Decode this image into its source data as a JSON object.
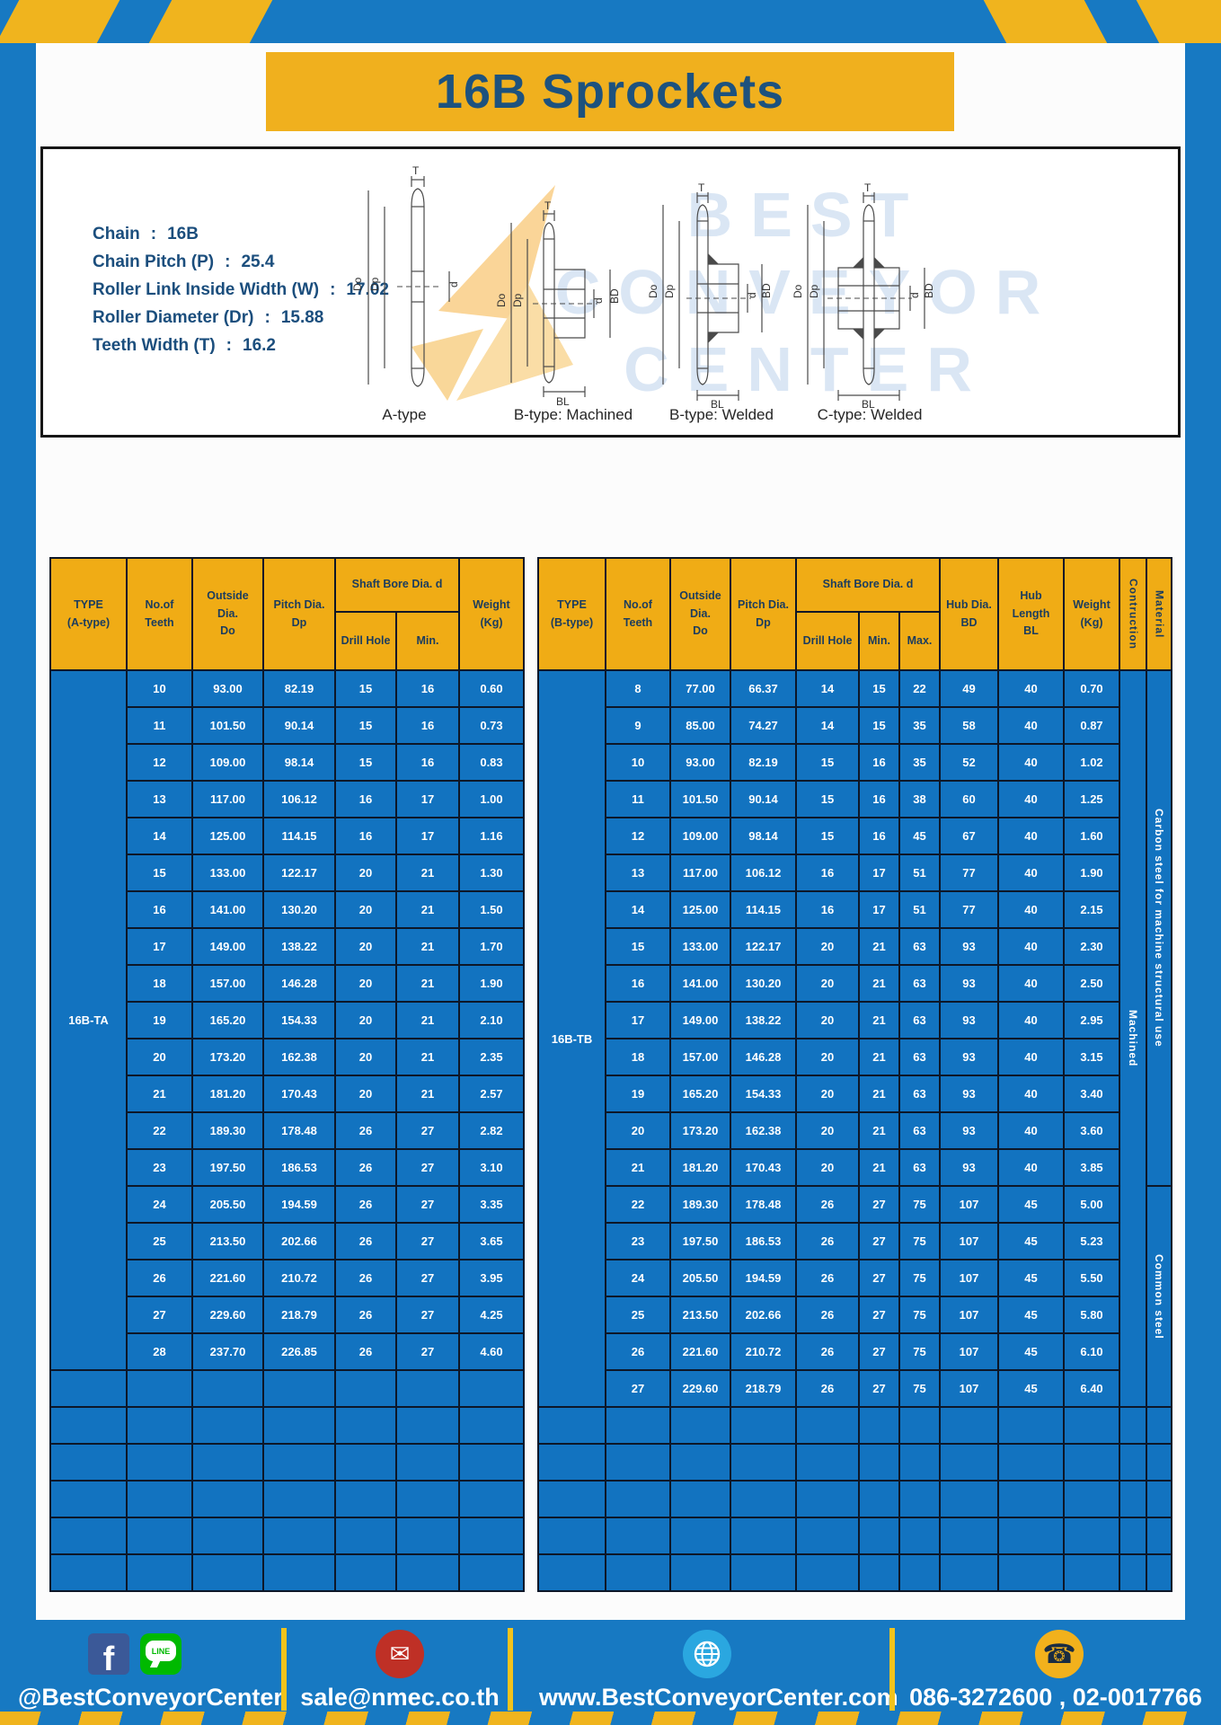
{
  "title": "16B Sprockets",
  "specs_separator": ":",
  "specs": [
    {
      "label": "Chain",
      "value": "16B"
    },
    {
      "label": "Chain Pitch (P)",
      "value": "25.4"
    },
    {
      "label": "Roller Link Inside Width (W)",
      "value": "17.02"
    },
    {
      "label": "Roller Diameter (Dr)",
      "value": "15.88"
    },
    {
      "label": "Teeth Width (T)",
      "value": "16.2"
    }
  ],
  "diagram": {
    "watermark_lines": [
      "BEST",
      "CONVEYOR",
      "CENTER"
    ],
    "dimension_labels": {
      "t": "T",
      "do": "Do",
      "dp": "Dp",
      "d": "d",
      "bd": "BD",
      "bl": "BL"
    },
    "captions": [
      "A-type",
      "B-type: Machined",
      "B-type: Welded",
      "C-type: Welded"
    ]
  },
  "table_a": {
    "type_label": "16B-TA",
    "column_count": 7,
    "empty_row_count": 6,
    "header": {
      "type": "TYPE\n(A-type)",
      "teeth": "No.of\nTeeth",
      "outside": "Outside\nDia.\nDo",
      "pitch": "Pitch Dia.\nDp",
      "shaft_bore": "Shaft Bore Dia. d",
      "drill": "Drill Hole",
      "min": "Min.",
      "weight": "Weight\n(Kg)"
    },
    "rows": [
      [
        "10",
        "93.00",
        "82.19",
        "15",
        "16",
        "0.60"
      ],
      [
        "11",
        "101.50",
        "90.14",
        "15",
        "16",
        "0.73"
      ],
      [
        "12",
        "109.00",
        "98.14",
        "15",
        "16",
        "0.83"
      ],
      [
        "13",
        "117.00",
        "106.12",
        "16",
        "17",
        "1.00"
      ],
      [
        "14",
        "125.00",
        "114.15",
        "16",
        "17",
        "1.16"
      ],
      [
        "15",
        "133.00",
        "122.17",
        "20",
        "21",
        "1.30"
      ],
      [
        "16",
        "141.00",
        "130.20",
        "20",
        "21",
        "1.50"
      ],
      [
        "17",
        "149.00",
        "138.22",
        "20",
        "21",
        "1.70"
      ],
      [
        "18",
        "157.00",
        "146.28",
        "20",
        "21",
        "1.90"
      ],
      [
        "19",
        "165.20",
        "154.33",
        "20",
        "21",
        "2.10"
      ],
      [
        "20",
        "173.20",
        "162.38",
        "20",
        "21",
        "2.35"
      ],
      [
        "21",
        "181.20",
        "170.43",
        "20",
        "21",
        "2.57"
      ],
      [
        "22",
        "189.30",
        "178.48",
        "26",
        "27",
        "2.82"
      ],
      [
        "23",
        "197.50",
        "186.53",
        "26",
        "27",
        "3.10"
      ],
      [
        "24",
        "205.50",
        "194.59",
        "26",
        "27",
        "3.35"
      ],
      [
        "25",
        "213.50",
        "202.66",
        "26",
        "27",
        "3.65"
      ],
      [
        "26",
        "221.60",
        "210.72",
        "26",
        "27",
        "3.95"
      ],
      [
        "27",
        "229.60",
        "218.79",
        "26",
        "27",
        "4.25"
      ],
      [
        "28",
        "237.70",
        "226.85",
        "26",
        "27",
        "4.60"
      ]
    ]
  },
  "table_b": {
    "type_label": "16B-TB",
    "column_count": 12,
    "empty_row_count": 5,
    "construction_value": "Machined",
    "material_groups": [
      {
        "label": "Carbon steel for machine structural use",
        "row_span": 14
      },
      {
        "label": "Common steel",
        "row_span": 6
      }
    ],
    "header": {
      "type": "TYPE\n(B-type)",
      "teeth": "No.of\nTeeth",
      "outside": "Outside\nDia.\nDo",
      "pitch": "Pitch Dia.\nDp",
      "shaft_bore": "Shaft Bore Dia. d",
      "drill": "Drill Hole",
      "min": "Min.",
      "max": "Max.",
      "hub_dia": "Hub Dia.\nBD",
      "hub_length": "Hub\nLength\nBL",
      "weight": "Weight\n(Kg)",
      "construction": "Contruction",
      "material": "Material"
    },
    "rows": [
      [
        "8",
        "77.00",
        "66.37",
        "14",
        "15",
        "22",
        "49",
        "40",
        "0.70"
      ],
      [
        "9",
        "85.00",
        "74.27",
        "14",
        "15",
        "35",
        "58",
        "40",
        "0.87"
      ],
      [
        "10",
        "93.00",
        "82.19",
        "15",
        "16",
        "35",
        "52",
        "40",
        "1.02"
      ],
      [
        "11",
        "101.50",
        "90.14",
        "15",
        "16",
        "38",
        "60",
        "40",
        "1.25"
      ],
      [
        "12",
        "109.00",
        "98.14",
        "15",
        "16",
        "45",
        "67",
        "40",
        "1.60"
      ],
      [
        "13",
        "117.00",
        "106.12",
        "16",
        "17",
        "51",
        "77",
        "40",
        "1.90"
      ],
      [
        "14",
        "125.00",
        "114.15",
        "16",
        "17",
        "51",
        "77",
        "40",
        "2.15"
      ],
      [
        "15",
        "133.00",
        "122.17",
        "20",
        "21",
        "63",
        "93",
        "40",
        "2.30"
      ],
      [
        "16",
        "141.00",
        "130.20",
        "20",
        "21",
        "63",
        "93",
        "40",
        "2.50"
      ],
      [
        "17",
        "149.00",
        "138.22",
        "20",
        "21",
        "63",
        "93",
        "40",
        "2.95"
      ],
      [
        "18",
        "157.00",
        "146.28",
        "20",
        "21",
        "63",
        "93",
        "40",
        "3.15"
      ],
      [
        "19",
        "165.20",
        "154.33",
        "20",
        "21",
        "63",
        "93",
        "40",
        "3.40"
      ],
      [
        "20",
        "173.20",
        "162.38",
        "20",
        "21",
        "63",
        "93",
        "40",
        "3.60"
      ],
      [
        "21",
        "181.20",
        "170.43",
        "20",
        "21",
        "63",
        "93",
        "40",
        "3.85"
      ],
      [
        "22",
        "189.30",
        "178.48",
        "26",
        "27",
        "75",
        "107",
        "45",
        "5.00"
      ],
      [
        "23",
        "197.50",
        "186.53",
        "26",
        "27",
        "75",
        "107",
        "45",
        "5.23"
      ],
      [
        "24",
        "205.50",
        "194.59",
        "26",
        "27",
        "75",
        "107",
        "45",
        "5.50"
      ],
      [
        "25",
        "213.50",
        "202.66",
        "26",
        "27",
        "75",
        "107",
        "45",
        "5.80"
      ],
      [
        "26",
        "221.60",
        "210.72",
        "26",
        "27",
        "75",
        "107",
        "45",
        "6.10"
      ],
      [
        "27",
        "229.60",
        "218.79",
        "26",
        "27",
        "75",
        "107",
        "45",
        "6.40"
      ]
    ]
  },
  "footer": {
    "facebook_label": "f",
    "line_label": "LINE",
    "social_handle": "@BestConveyorCenter",
    "email": "sale@nmec.co.th",
    "website": "www.BestConveyorCenter.com",
    "phone": "086-3272600 , 02-0017766",
    "mail_glyph": "✉",
    "phone_glyph": "☎"
  },
  "colors": {
    "page_blue": "#1779c2",
    "cell_blue": "#1273c0",
    "accent_yellow": "#f0ad18",
    "title_navy": "#1d527e"
  }
}
